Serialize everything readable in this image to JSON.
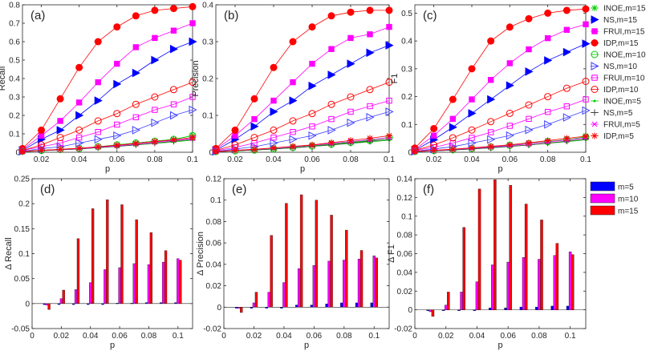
{
  "chart_data": [
    {
      "id": "a",
      "type": "line",
      "panel_label": "(a)",
      "xlabel": "p",
      "ylabel": "Recall",
      "xlim": [
        0.01,
        0.1
      ],
      "ylim": [
        0,
        0.8
      ],
      "xticks": [
        "0.02",
        "0.04",
        "0.06",
        "0.08",
        "0.1"
      ],
      "yticks": [
        "0",
        "0.1",
        "0.2",
        "0.3",
        "0.4",
        "0.5",
        "0.6",
        "0.7",
        "0.8"
      ],
      "x": [
        0.01,
        0.02,
        0.03,
        0.04,
        0.05,
        0.06,
        0.07,
        0.08,
        0.09,
        0.1
      ],
      "series": [
        {
          "name": "INOE,m=15",
          "values": [
            0.005,
            0.01,
            0.015,
            0.02,
            0.03,
            0.04,
            0.05,
            0.06,
            0.07,
            0.09
          ]
        },
        {
          "name": "NS,m=15",
          "values": [
            0.01,
            0.07,
            0.12,
            0.2,
            0.28,
            0.37,
            0.43,
            0.5,
            0.56,
            0.6
          ]
        },
        {
          "name": "FRUI,m=15",
          "values": [
            0.015,
            0.09,
            0.17,
            0.27,
            0.38,
            0.48,
            0.57,
            0.62,
            0.66,
            0.7
          ]
        },
        {
          "name": "IDP,m=15",
          "values": [
            0.02,
            0.12,
            0.29,
            0.46,
            0.6,
            0.68,
            0.74,
            0.77,
            0.78,
            0.79
          ]
        },
        {
          "name": "INOE,m=10",
          "values": [
            0.005,
            0.01,
            0.015,
            0.02,
            0.03,
            0.04,
            0.05,
            0.06,
            0.07,
            0.09
          ]
        },
        {
          "name": "NS,m=10",
          "values": [
            0.005,
            0.02,
            0.03,
            0.05,
            0.07,
            0.09,
            0.12,
            0.16,
            0.2,
            0.23
          ]
        },
        {
          "name": "FRUI,m=10",
          "values": [
            0.01,
            0.03,
            0.05,
            0.08,
            0.11,
            0.15,
            0.19,
            0.23,
            0.26,
            0.3
          ]
        },
        {
          "name": "IDP,m=10",
          "values": [
            0.01,
            0.04,
            0.08,
            0.12,
            0.17,
            0.21,
            0.26,
            0.3,
            0.34,
            0.38
          ]
        },
        {
          "name": "INOE,m=5",
          "values": [
            0.003,
            0.008,
            0.013,
            0.018,
            0.025,
            0.032,
            0.04,
            0.048,
            0.056,
            0.066
          ]
        },
        {
          "name": "NS,m=5",
          "values": [
            0.003,
            0.008,
            0.013,
            0.018,
            0.025,
            0.032,
            0.04,
            0.05,
            0.06,
            0.07
          ]
        },
        {
          "name": "FRUI,m=5",
          "values": [
            0.004,
            0.01,
            0.015,
            0.02,
            0.028,
            0.035,
            0.045,
            0.055,
            0.065,
            0.075
          ]
        },
        {
          "name": "IDP,m=5",
          "values": [
            0.004,
            0.01,
            0.016,
            0.022,
            0.03,
            0.038,
            0.048,
            0.058,
            0.068,
            0.08
          ]
        }
      ]
    },
    {
      "id": "b",
      "type": "line",
      "panel_label": "(b)",
      "xlabel": "p",
      "ylabel": "Precision",
      "xlim": [
        0.01,
        0.1
      ],
      "ylim": [
        0,
        0.4
      ],
      "xticks": [
        "0.02",
        "0.04",
        "0.06",
        "0.08",
        "0.1"
      ],
      "yticks": [
        "0",
        "0.1",
        "0.2",
        "0.3",
        "0.4"
      ],
      "x": [
        0.01,
        0.02,
        0.03,
        0.04,
        0.05,
        0.06,
        0.07,
        0.08,
        0.09,
        0.1
      ],
      "series": [
        {
          "name": "INOE,m=15",
          "values": [
            0.002,
            0.004,
            0.006,
            0.009,
            0.013,
            0.017,
            0.022,
            0.027,
            0.032,
            0.04
          ]
        },
        {
          "name": "NS,m=15",
          "values": [
            0.005,
            0.035,
            0.07,
            0.11,
            0.14,
            0.18,
            0.21,
            0.24,
            0.27,
            0.29
          ]
        },
        {
          "name": "FRUI,m=15",
          "values": [
            0.008,
            0.045,
            0.09,
            0.14,
            0.19,
            0.24,
            0.28,
            0.31,
            0.32,
            0.34
          ]
        },
        {
          "name": "IDP,m=15",
          "values": [
            0.01,
            0.06,
            0.145,
            0.23,
            0.3,
            0.34,
            0.37,
            0.38,
            0.385,
            0.385
          ]
        },
        {
          "name": "INOE,m=10",
          "values": [
            0.002,
            0.004,
            0.006,
            0.009,
            0.013,
            0.017,
            0.022,
            0.027,
            0.032,
            0.04
          ]
        },
        {
          "name": "NS,m=10",
          "values": [
            0.002,
            0.009,
            0.015,
            0.025,
            0.035,
            0.045,
            0.06,
            0.08,
            0.095,
            0.11
          ]
        },
        {
          "name": "FRUI,m=10",
          "values": [
            0.004,
            0.013,
            0.025,
            0.04,
            0.055,
            0.07,
            0.09,
            0.11,
            0.125,
            0.14
          ]
        },
        {
          "name": "IDP,m=10",
          "values": [
            0.005,
            0.02,
            0.04,
            0.06,
            0.085,
            0.105,
            0.13,
            0.15,
            0.17,
            0.19
          ]
        },
        {
          "name": "INOE,m=5",
          "values": [
            0.001,
            0.004,
            0.006,
            0.009,
            0.012,
            0.016,
            0.02,
            0.024,
            0.028,
            0.033
          ]
        },
        {
          "name": "NS,m=5",
          "values": [
            0.001,
            0.004,
            0.006,
            0.009,
            0.012,
            0.016,
            0.02,
            0.025,
            0.03,
            0.035
          ]
        },
        {
          "name": "FRUI,m=5",
          "values": [
            0.002,
            0.005,
            0.008,
            0.011,
            0.015,
            0.019,
            0.024,
            0.029,
            0.034,
            0.04
          ]
        },
        {
          "name": "IDP,m=5",
          "values": [
            0.002,
            0.005,
            0.008,
            0.012,
            0.016,
            0.02,
            0.026,
            0.032,
            0.038,
            0.045
          ]
        }
      ]
    },
    {
      "id": "c",
      "type": "line",
      "panel_label": "(c)",
      "xlabel": "p",
      "ylabel": "F1",
      "xlim": [
        0.01,
        0.1
      ],
      "ylim": [
        0,
        0.53
      ],
      "xticks": [
        "0.02",
        "0.04",
        "0.06",
        "0.08",
        "0.1"
      ],
      "yticks": [
        "0",
        "0.1",
        "0.2",
        "0.3",
        "0.4",
        "0.5"
      ],
      "x": [
        0.01,
        0.02,
        0.03,
        0.04,
        0.05,
        0.06,
        0.07,
        0.08,
        0.09,
        0.1
      ],
      "series": [
        {
          "name": "INOE,m=15",
          "values": [
            0.003,
            0.006,
            0.009,
            0.013,
            0.019,
            0.025,
            0.031,
            0.038,
            0.045,
            0.055
          ]
        },
        {
          "name": "NS,m=15",
          "values": [
            0.007,
            0.045,
            0.09,
            0.14,
            0.19,
            0.24,
            0.29,
            0.33,
            0.36,
            0.39
          ]
        },
        {
          "name": "FRUI,m=15",
          "values": [
            0.01,
            0.06,
            0.12,
            0.19,
            0.26,
            0.32,
            0.37,
            0.41,
            0.44,
            0.46
          ]
        },
        {
          "name": "IDP,m=15",
          "values": [
            0.015,
            0.085,
            0.19,
            0.3,
            0.4,
            0.45,
            0.48,
            0.5,
            0.51,
            0.515
          ]
        },
        {
          "name": "INOE,m=10",
          "values": [
            0.003,
            0.006,
            0.009,
            0.013,
            0.019,
            0.025,
            0.031,
            0.038,
            0.045,
            0.055
          ]
        },
        {
          "name": "NS,m=10",
          "values": [
            0.003,
            0.012,
            0.02,
            0.033,
            0.046,
            0.06,
            0.08,
            0.1,
            0.125,
            0.15
          ]
        },
        {
          "name": "FRUI,m=10",
          "values": [
            0.006,
            0.018,
            0.033,
            0.052,
            0.072,
            0.095,
            0.12,
            0.145,
            0.165,
            0.19
          ]
        },
        {
          "name": "IDP,m=10",
          "values": [
            0.007,
            0.026,
            0.052,
            0.08,
            0.11,
            0.14,
            0.17,
            0.2,
            0.23,
            0.255
          ]
        },
        {
          "name": "INOE,m=5",
          "values": [
            0.002,
            0.005,
            0.008,
            0.012,
            0.016,
            0.021,
            0.026,
            0.032,
            0.038,
            0.045
          ]
        },
        {
          "name": "NS,m=5",
          "values": [
            0.002,
            0.005,
            0.008,
            0.012,
            0.016,
            0.021,
            0.026,
            0.033,
            0.04,
            0.047
          ]
        },
        {
          "name": "FRUI,m=5",
          "values": [
            0.003,
            0.006,
            0.01,
            0.014,
            0.019,
            0.024,
            0.03,
            0.037,
            0.044,
            0.052
          ]
        },
        {
          "name": "IDP,m=5",
          "values": [
            0.003,
            0.007,
            0.011,
            0.016,
            0.021,
            0.027,
            0.034,
            0.042,
            0.05,
            0.058
          ]
        }
      ]
    },
    {
      "id": "d",
      "type": "bar",
      "panel_label": "(d)",
      "xlabel": "p",
      "ylabel": "Δ Recall",
      "xlim": [
        0,
        0.11
      ],
      "ylim": [
        -0.05,
        0.25
      ],
      "xticks": [
        "0",
        "0.02",
        "0.04",
        "0.06",
        "0.08",
        "0.1"
      ],
      "yticks": [
        "-0.05",
        "0",
        "0.05",
        "0.1",
        "0.15",
        "0.2",
        "0.25"
      ],
      "x": [
        0.01,
        0.02,
        0.03,
        0.04,
        0.05,
        0.06,
        0.07,
        0.08,
        0.09,
        0.1
      ],
      "series": [
        {
          "name": "m=5",
          "values": [
            -0.002,
            -0.002,
            -0.002,
            -0.002,
            -0.002,
            0.001,
            0.001,
            0.002,
            0.002,
            0.002
          ]
        },
        {
          "name": "m=10",
          "values": [
            -0.003,
            0.01,
            0.028,
            0.042,
            0.068,
            0.072,
            0.08,
            0.078,
            0.083,
            0.09
          ]
        },
        {
          "name": "m=15",
          "values": [
            -0.012,
            0.027,
            0.13,
            0.19,
            0.208,
            0.198,
            0.168,
            0.142,
            0.106,
            0.087
          ]
        }
      ]
    },
    {
      "id": "e",
      "type": "bar",
      "panel_label": "(e)",
      "xlabel": "p",
      "ylabel": "Δ Precision",
      "xlim": [
        0,
        0.11
      ],
      "ylim": [
        -0.02,
        0.12
      ],
      "xticks": [
        "0",
        "0.02",
        "0.04",
        "0.06",
        "0.08",
        "0.1"
      ],
      "yticks": [
        "-0.02",
        "0",
        "0.02",
        "0.04",
        "0.06",
        "0.08",
        "0.1",
        "0.12"
      ],
      "x": [
        0.01,
        0.02,
        0.03,
        0.04,
        0.05,
        0.06,
        0.07,
        0.08,
        0.09,
        0.1
      ],
      "series": [
        {
          "name": "m=5",
          "values": [
            -0.001,
            -0.001,
            -0.001,
            -0.001,
            0.002,
            0.002,
            0.003,
            0.004,
            0.004,
            0.004
          ]
        },
        {
          "name": "m=10",
          "values": [
            -0.001,
            0.004,
            0.014,
            0.023,
            0.036,
            0.039,
            0.043,
            0.044,
            0.045,
            0.048
          ]
        },
        {
          "name": "m=15",
          "values": [
            -0.005,
            0.014,
            0.067,
            0.097,
            0.105,
            0.1,
            0.086,
            0.072,
            0.053,
            0.046
          ]
        }
      ]
    },
    {
      "id": "f",
      "type": "bar",
      "panel_label": "(f)",
      "xlabel": "p",
      "ylabel": "Δ F1",
      "xlim": [
        0,
        0.11
      ],
      "ylim": [
        -0.02,
        0.14
      ],
      "xticks": [
        "0",
        "0.02",
        "0.04",
        "0.06",
        "0.08",
        "0.1"
      ],
      "yticks": [
        "-0.02",
        "0",
        "0.02",
        "0.04",
        "0.06",
        "0.08",
        "0.1",
        "0.12",
        "0.14"
      ],
      "x": [
        0.01,
        0.02,
        0.03,
        0.04,
        0.05,
        0.06,
        0.07,
        0.08,
        0.09,
        0.1
      ],
      "series": [
        {
          "name": "m=5",
          "values": [
            -0.001,
            -0.001,
            -0.001,
            -0.001,
            0.002,
            0.002,
            0.003,
            0.003,
            0.004,
            0.004
          ]
        },
        {
          "name": "m=10",
          "values": [
            -0.002,
            0.005,
            0.019,
            0.03,
            0.048,
            0.051,
            0.056,
            0.054,
            0.058,
            0.062
          ]
        },
        {
          "name": "m=15",
          "values": [
            -0.007,
            0.019,
            0.088,
            0.129,
            0.139,
            0.133,
            0.113,
            0.096,
            0.071,
            0.059
          ]
        }
      ]
    }
  ],
  "line_styles": {
    "INOE,m=15": {
      "color": "#00cc00",
      "marker": "asterisk",
      "filled": true
    },
    "NS,m=15": {
      "color": "#0000ff",
      "marker": "triangle-right",
      "filled": true
    },
    "FRUI,m=15": {
      "color": "#ff00ff",
      "marker": "square",
      "filled": true
    },
    "IDP,m=15": {
      "color": "#ff0000",
      "marker": "circle",
      "filled": true
    },
    "INOE,m=10": {
      "color": "#00cc00",
      "marker": "circle",
      "filled": false
    },
    "NS,m=10": {
      "color": "#4040ff",
      "marker": "triangle-right",
      "filled": false
    },
    "FRUI,m=10": {
      "color": "#ff00ff",
      "marker": "square",
      "filled": false
    },
    "IDP,m=10": {
      "color": "#ff0000",
      "marker": "circle",
      "filled": false
    },
    "INOE,m=5": {
      "color": "#00cc00",
      "marker": "dot",
      "filled": true
    },
    "NS,m=5": {
      "color": "#404040",
      "marker": "plus",
      "filled": false
    },
    "FRUI,m=5": {
      "color": "#ff00ff",
      "marker": "x",
      "filled": false
    },
    "IDP,m=5": {
      "color": "#ff0000",
      "marker": "asterisk",
      "filled": false
    }
  },
  "bar_colors": {
    "m=5": "#0000ff",
    "m=10": "#ff00ff",
    "m=15": "#ff0000"
  }
}
